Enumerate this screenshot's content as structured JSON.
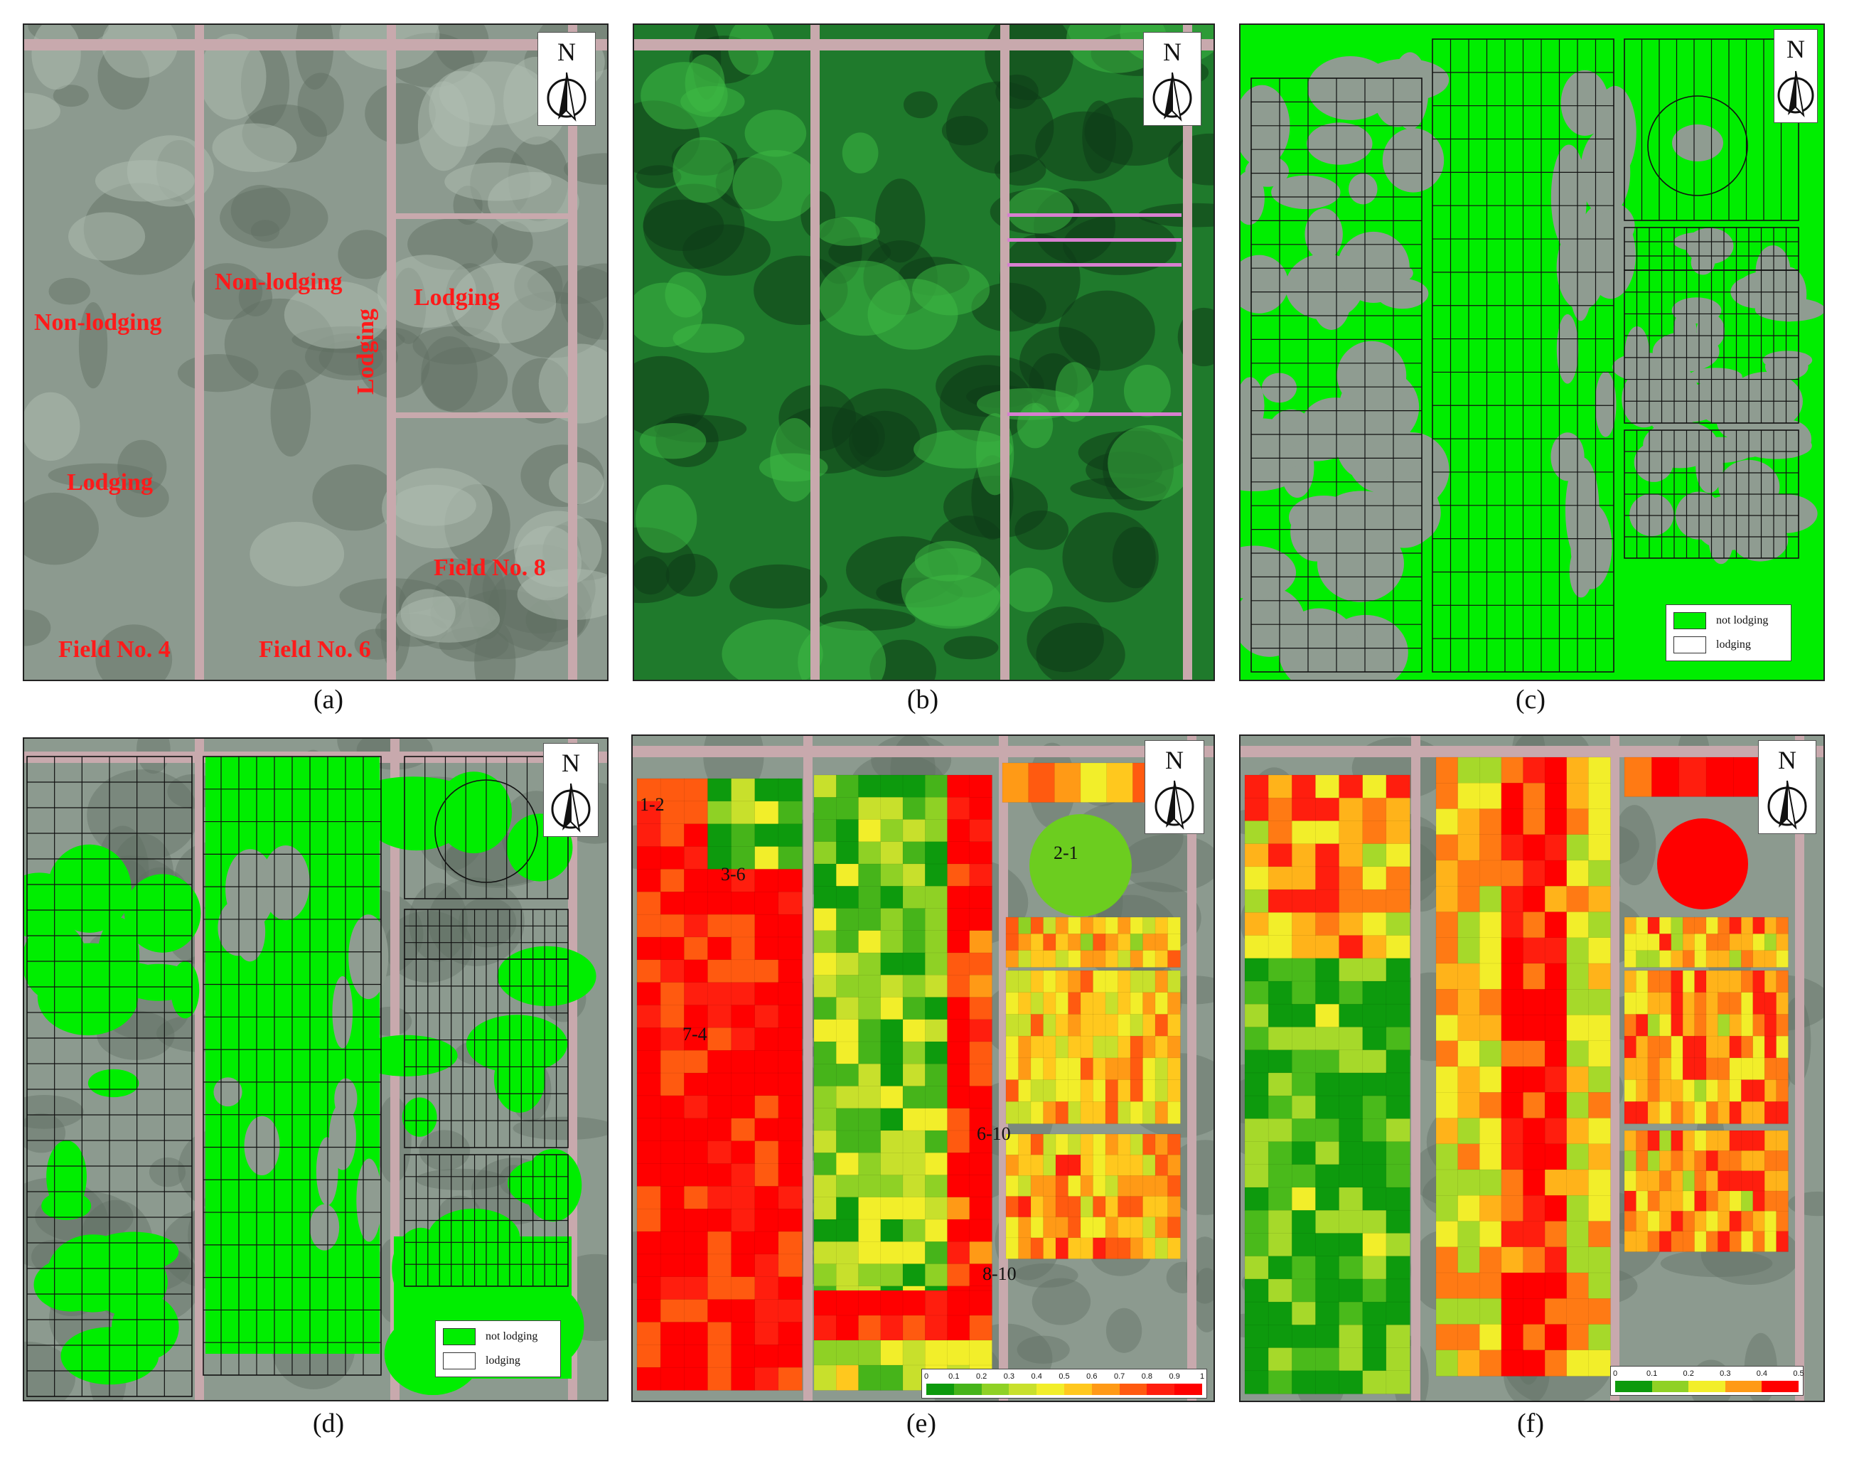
{
  "panels": {
    "a": {
      "caption": "(a)",
      "compass": "N",
      "labels": {
        "field4_nonlodging": "Non-lodging",
        "field4_lodging": "Lodging",
        "field6_nonlodging": "Non-lodging",
        "field6_lodging": "Lodging",
        "field8_lodging": "Lodging",
        "field4": "Field No. 4",
        "field6": "Field No. 6",
        "field8": "Field No. 8"
      }
    },
    "b": {
      "caption": "(b)",
      "compass": "N"
    },
    "c": {
      "caption": "(c)",
      "compass": "N",
      "legend": {
        "not_lodging": "not lodging",
        "lodging": "lodging"
      }
    },
    "d": {
      "caption": "(d)",
      "compass": "N",
      "legend": {
        "not_lodging": "not lodging",
        "lodging": "lodging"
      }
    },
    "e": {
      "caption": "(e)",
      "compass": "N",
      "plot_labels": {
        "p12": "1-2",
        "p36": "3-6",
        "p74": "7-4",
        "p21": "2-1",
        "p610": "6-10",
        "p810": "8-10"
      },
      "colorbar_ticks": [
        "0",
        "0.1",
        "0.2",
        "0.3",
        "0.4",
        "0.5",
        "0.6",
        "0.7",
        "0.8",
        "0.9",
        "1"
      ]
    },
    "f": {
      "caption": "(f)",
      "compass": "N",
      "colorbar_ticks": [
        "0",
        "0.1",
        "0.2",
        "0.3",
        "0.4",
        "0.5"
      ]
    }
  },
  "colors": {
    "not_lodging_green": "#00ee00",
    "road": "#c8a9ad",
    "crop_gray": "#8f9c91",
    "heat_scale": [
      "#0d9a0d",
      "#46b41a",
      "#8fd125",
      "#c8e02c",
      "#f2ee2a",
      "#ffc81e",
      "#ff9a16",
      "#ff5a10",
      "#ff1e0e",
      "#ff0000"
    ]
  }
}
